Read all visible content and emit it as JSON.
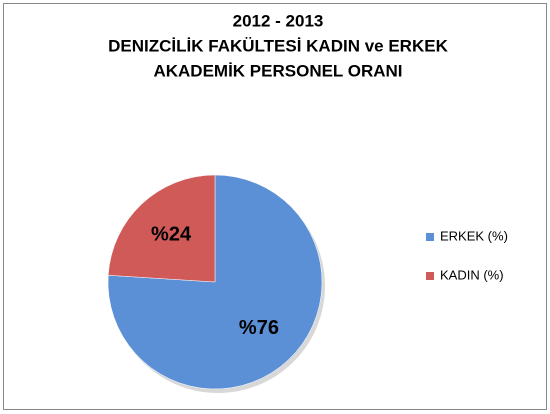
{
  "chart_data": {
    "type": "pie",
    "title": [
      "2012 - 2013",
      "DENIZCİLİK FAKÜLTESİ KADIN ve ERKEK",
      "AKADEMİK PERSONEL ORANI"
    ],
    "categories": [
      "ERKEK (%)",
      "KADIN (%)"
    ],
    "values": [
      76,
      24
    ],
    "value_labels": [
      "%76",
      "%24"
    ],
    "colors": [
      "#5b8fd6",
      "#d05a58"
    ],
    "legend": "right"
  }
}
